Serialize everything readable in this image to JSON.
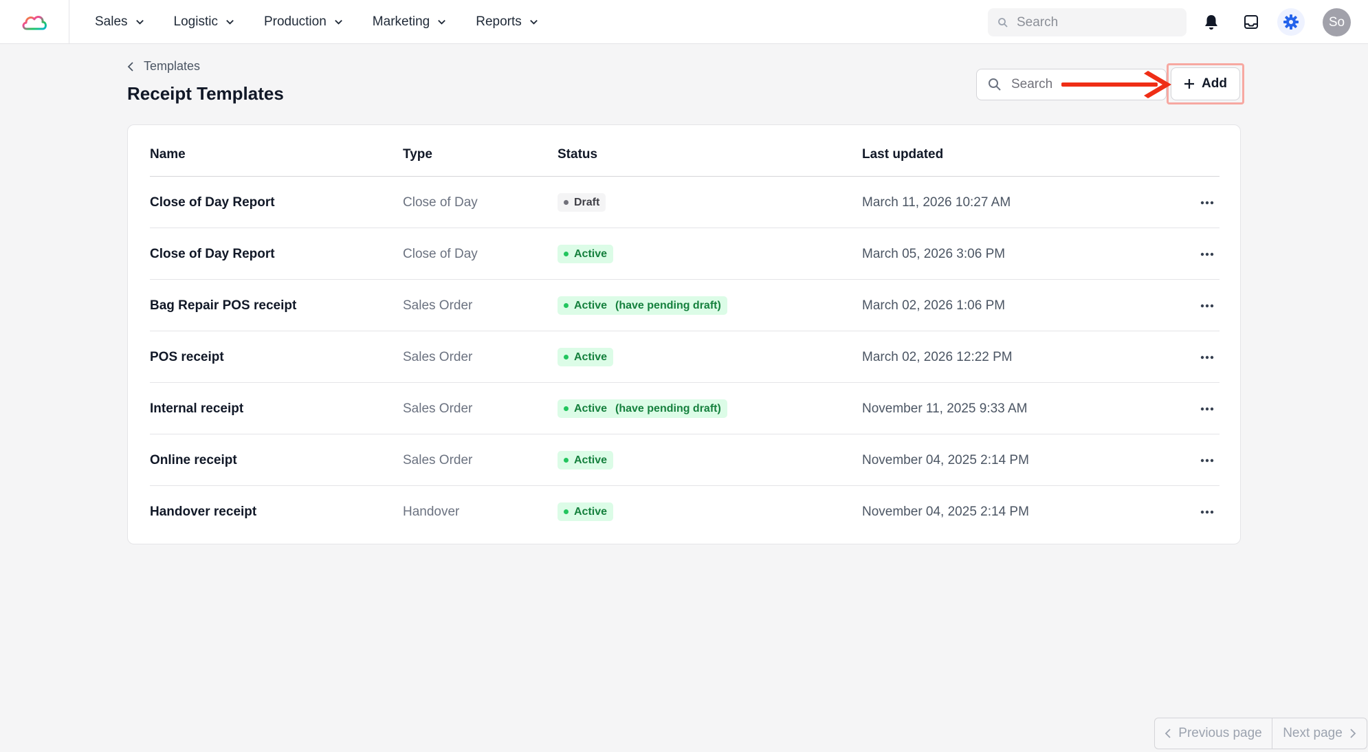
{
  "nav": {
    "items": [
      {
        "label": "Sales"
      },
      {
        "label": "Logistic"
      },
      {
        "label": "Production"
      },
      {
        "label": "Marketing"
      },
      {
        "label": "Reports"
      }
    ],
    "search_placeholder": "Search",
    "avatar_initials": "So"
  },
  "page": {
    "breadcrumb": "Templates",
    "title": "Receipt Templates",
    "search_placeholder": "Search",
    "add_label": "Add"
  },
  "table": {
    "columns": [
      "Name",
      "Type",
      "Status",
      "Last updated"
    ],
    "rows": [
      {
        "name": "Close of Day Report",
        "type": "Close of Day",
        "status": "Draft",
        "status_kind": "draft",
        "status_extra": "",
        "updated": "March 11, 2026 10:27 AM"
      },
      {
        "name": "Close of Day Report",
        "type": "Close of Day",
        "status": "Active",
        "status_kind": "active",
        "status_extra": "",
        "updated": "March 05, 2026 3:06 PM"
      },
      {
        "name": "Bag Repair POS receipt",
        "type": "Sales Order",
        "status": "Active",
        "status_kind": "active",
        "status_extra": "(have pending draft)",
        "updated": "March 02, 2026 1:06 PM"
      },
      {
        "name": "POS receipt",
        "type": "Sales Order",
        "status": "Active",
        "status_kind": "active",
        "status_extra": "",
        "updated": "March 02, 2026 12:22 PM"
      },
      {
        "name": "Internal receipt",
        "type": "Sales Order",
        "status": "Active",
        "status_kind": "active",
        "status_extra": "(have pending draft)",
        "updated": "November 11, 2025 9:33 AM"
      },
      {
        "name": "Online receipt",
        "type": "Sales Order",
        "status": "Active",
        "status_kind": "active",
        "status_extra": "",
        "updated": "November 04, 2025 2:14 PM"
      },
      {
        "name": "Handover receipt",
        "type": "Handover",
        "status": "Active",
        "status_kind": "active",
        "status_extra": "",
        "updated": "November 04, 2025 2:14 PM"
      }
    ]
  },
  "pagination": {
    "prev_label": "Previous page",
    "next_label": "Next page"
  },
  "colors": {
    "accent": "#2563eb",
    "active_bg": "#dcfce7",
    "active_text": "#15803d",
    "annotation_arrow": "#ef2e16"
  }
}
